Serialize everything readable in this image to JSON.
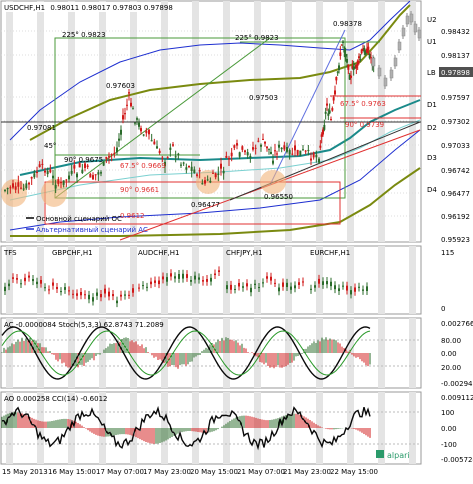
{
  "header": {
    "symbol": "USDCHF,H1",
    "ohlc": "0.98011 0.98017 0.97803 0.97898"
  },
  "price_axis": {
    "labels": [
      "0.98432",
      "0.98137",
      "0.97898",
      "0.97597",
      "0.97302",
      "0.97033",
      "0.96742",
      "0.96477",
      "0.96192",
      "0.95923"
    ],
    "current": "0.97898"
  },
  "zone_labels": [
    "U2",
    "U1",
    "LB",
    "D1",
    "D2",
    "D3",
    "D4"
  ],
  "annotations": {
    "fan_top_left": "225° 0.9823",
    "fan_top_right": "225° 0.9823",
    "fan_mid": "90° 0.9675",
    "fan_lower_left": "90° 0.9661",
    "fan_67_left": "67.5° 0.9669",
    "fan_67_right": "67.5° 0.9763",
    "fan_90_right": "90° 0.9739",
    "fan_45": "45°",
    "fan_red_left": "0.9612",
    "peak_1": "0.98378",
    "peak_2": "0.97603",
    "peak_3": "0.97503",
    "peak_4": "0.97081",
    "trough_1": "0.96477",
    "trough_2": "0.96550"
  },
  "legend": {
    "main": "Основной сценарий ОС",
    "alt": "Альтернативный сценарий АС"
  },
  "panel_cross": {
    "tag": "TFS",
    "pairs": [
      "GBPCHF,H1",
      "AUDCHF,H1",
      "CHFJPY,H1",
      "EURCHF,H1"
    ],
    "scale": [
      "115",
      "0"
    ]
  },
  "panel_ac": {
    "title": "AC -0.0000084 Stoch(5,3,3) 62.8743 71.2089",
    "scale": [
      "0.002766",
      "80.00",
      "0.00",
      "20.00",
      "-0.002948"
    ]
  },
  "panel_ao": {
    "title": "AO 0.000258 CCI(14) -0.6012",
    "scale": [
      "0.009112",
      "100",
      "0.00",
      "-100",
      "-0.005724"
    ]
  },
  "time_axis": [
    "15 May 2013",
    "16 May 15:00",
    "17 May 07:00",
    "17 May 23:00",
    "20 May 15:00",
    "21 May 07:00",
    "21 May 23:00",
    "22 May 15:00"
  ],
  "watermark": "alpari",
  "colors": {
    "bull": "#2a6b2a",
    "bear": "#d01818",
    "band_blue": "#1e2fd0",
    "band_olive": "#7a8a10",
    "band_teal": "#1a8a8a",
    "fan_green": "#4a9a3a",
    "fan_red": "#e03030",
    "current_box": "#505050"
  }
}
